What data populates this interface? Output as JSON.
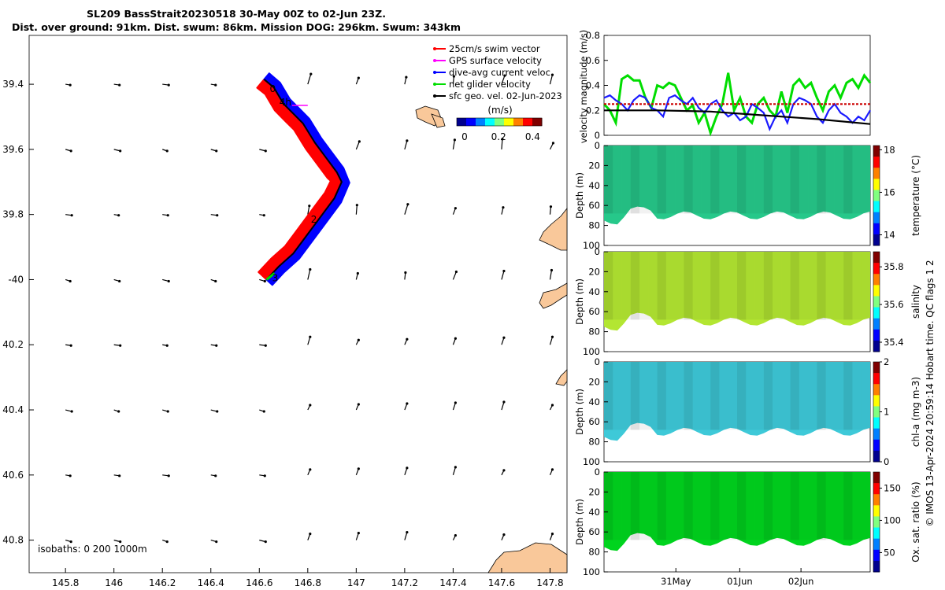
{
  "title_lines": [
    "SL209 BassStrait20230518 30-May 00Z to 02-Jun 23Z.",
    "Dist. over ground: 91km. Dist. swum: 86km. Mission DOG: 296km. Swum: 343km"
  ],
  "credit": "© IMOS 13-Apr-2024 20:59:14 Hobart time. QC flags 1  2",
  "colors": {
    "swim": "#ff0000",
    "gps": "#ff00ff",
    "dive_avg": "#0000ff",
    "net": "#00dd00",
    "geo": "#000000",
    "land": "#f9c89a",
    "magnitude_line": "#cc0000"
  },
  "chart_data": [
    {
      "id": "map",
      "type": "scatter",
      "xlim": [
        145.65,
        147.87
      ],
      "ylim": [
        -40.9,
        -39.25
      ],
      "x_ticks": [
        145.8,
        146,
        146.2,
        146.4,
        146.6,
        146.8,
        147,
        147.2,
        147.4,
        147.6,
        147.8
      ],
      "x_tick_labels": [
        "145.8",
        "146",
        "146.2",
        "146.4",
        "146.6",
        "146.8",
        "147",
        "147.2",
        "147.4",
        "147.6",
        "147.8"
      ],
      "y_ticks": [
        -39.4,
        -39.6,
        -39.8,
        -40,
        -40.2,
        -40.4,
        -40.6,
        -40.8
      ],
      "y_tick_labels": [
        "39.4",
        "39.6",
        "39.8",
        "-40",
        "40.2",
        "40.4",
        "40.6",
        "40.8"
      ],
      "legend": [
        {
          "label": "25cm/s swim vector",
          "color": "#ff0000"
        },
        {
          "label": "GPS surface velocity",
          "color": "#ff00ff"
        },
        {
          "label": "dive-avg current veloc.",
          "color": "#0000ff"
        },
        {
          "label": "net glider velocity",
          "color": "#00dd00"
        },
        {
          "label": "sfc geo. vel. 02-Jun-2023",
          "color": "#000000"
        }
      ],
      "colorbar": {
        "label": "(m/s)",
        "ticks": [
          "0",
          "0.2",
          "0.4"
        ],
        "range": [
          0,
          0.5
        ]
      },
      "isobaths_label": "isobaths: 0   200  1000m",
      "track": [
        [
          146.62,
          -39.385
        ],
        [
          146.66,
          -39.41
        ],
        [
          146.7,
          -39.46
        ],
        [
          146.74,
          -39.49
        ],
        [
          146.78,
          -39.52
        ],
        [
          146.83,
          -39.58
        ],
        [
          146.88,
          -39.63
        ],
        [
          146.92,
          -39.67
        ],
        [
          146.94,
          -39.7
        ],
        [
          146.91,
          -39.75
        ],
        [
          146.86,
          -39.8
        ],
        [
          146.8,
          -39.86
        ],
        [
          146.74,
          -39.92
        ],
        [
          146.68,
          -39.96
        ],
        [
          146.63,
          -40.0
        ]
      ],
      "track_labels": [
        {
          "text": "0",
          "lon": 146.63,
          "lat": -39.41
        },
        {
          "text": "4h",
          "lon": 146.67,
          "lat": -39.45
        },
        {
          "text": "2",
          "lon": 146.8,
          "lat": -39.81
        },
        {
          "text": "3",
          "lon": 146.64,
          "lat": -39.99
        }
      ],
      "geo_grid_lon": [
        145.8,
        146,
        146.2,
        146.4,
        146.6,
        146.8,
        147,
        147.2,
        147.4,
        147.6,
        147.8
      ],
      "geo_grid_lat": [
        -39.4,
        -39.6,
        -39.8,
        -40,
        -40.2,
        -40.4,
        -40.6,
        -40.8
      ]
    },
    {
      "id": "velocity",
      "type": "line",
      "ylabel": "velocity magnitude (m/s)",
      "ylim": [
        0,
        0.8
      ],
      "y_ticks": [
        "0",
        "0.2",
        "0.4",
        "0.6",
        "0.8"
      ],
      "x_range_days": [
        0,
        4
      ],
      "series": [
        {
          "color": "#00dd00",
          "values": [
            0.25,
            0.2,
            0.1,
            0.45,
            0.48,
            0.44,
            0.44,
            0.3,
            0.22,
            0.4,
            0.38,
            0.42,
            0.4,
            0.3,
            0.2,
            0.24,
            0.1,
            0.18,
            0.02,
            0.15,
            0.25,
            0.5,
            0.2,
            0.3,
            0.15,
            0.1,
            0.25,
            0.3,
            0.2,
            0.15,
            0.35,
            0.18,
            0.4,
            0.45,
            0.38,
            0.42,
            0.3,
            0.2,
            0.35,
            0.4,
            0.3,
            0.42,
            0.45,
            0.38,
            0.48,
            0.42
          ]
        },
        {
          "color": "#1a1aff",
          "values": [
            0.3,
            0.32,
            0.28,
            0.25,
            0.2,
            0.28,
            0.32,
            0.3,
            0.22,
            0.2,
            0.15,
            0.3,
            0.32,
            0.28,
            0.25,
            0.3,
            0.22,
            0.18,
            0.25,
            0.28,
            0.2,
            0.15,
            0.18,
            0.12,
            0.15,
            0.25,
            0.22,
            0.18,
            0.05,
            0.15,
            0.2,
            0.1,
            0.25,
            0.3,
            0.28,
            0.25,
            0.15,
            0.1,
            0.2,
            0.25,
            0.18,
            0.15,
            0.1,
            0.15,
            0.12,
            0.2
          ]
        },
        {
          "color": "#cc0000",
          "values": [
            0.25,
            0.25
          ]
        },
        {
          "color": "#000000",
          "values": [
            0.2,
            0.2,
            0.19,
            0.16,
            0.13,
            0.09
          ]
        }
      ]
    },
    {
      "id": "temperature",
      "type": "heatmap",
      "ylabel": "Depth (m)",
      "cbar_label": "temperature (°C)",
      "cbar_ticks": [
        "18",
        "16",
        "14"
      ],
      "clim": [
        13.5,
        18.2
      ],
      "y_ticks": [
        "0",
        "20",
        "40",
        "60",
        "80",
        "100"
      ],
      "field_color": "#26c88a"
    },
    {
      "id": "salinity",
      "type": "heatmap",
      "ylabel": "Depth (m)",
      "cbar_label": "salinity",
      "cbar_ticks": [
        "35.8",
        "35.6",
        "35.4"
      ],
      "clim": [
        35.35,
        35.88
      ],
      "y_ticks": [
        "0",
        "20",
        "40",
        "60",
        "80",
        "100"
      ],
      "field_color": "#b3e632"
    },
    {
      "id": "chla",
      "type": "heatmap",
      "ylabel": "Depth (m)",
      "cbar_label": "chl-a (mg m-3)",
      "cbar_ticks": [
        "2",
        "1",
        "0"
      ],
      "clim": [
        0,
        2
      ],
      "y_ticks": [
        "0",
        "20",
        "40",
        "60",
        "80",
        "100"
      ],
      "field_color": "#3ec9d8"
    },
    {
      "id": "oxygen",
      "type": "heatmap",
      "ylabel": "Depth (m)",
      "cbar_label": "Ox. sat. ratio (%)",
      "cbar_ticks": [
        "150",
        "100",
        "50"
      ],
      "clim": [
        20,
        175
      ],
      "y_ticks": [
        "0",
        "20",
        "40",
        "60",
        "80",
        "100"
      ],
      "x_tick_labels": [
        "31May",
        "01Jun",
        "02Jun"
      ],
      "field_color": "#00d41e"
    }
  ]
}
